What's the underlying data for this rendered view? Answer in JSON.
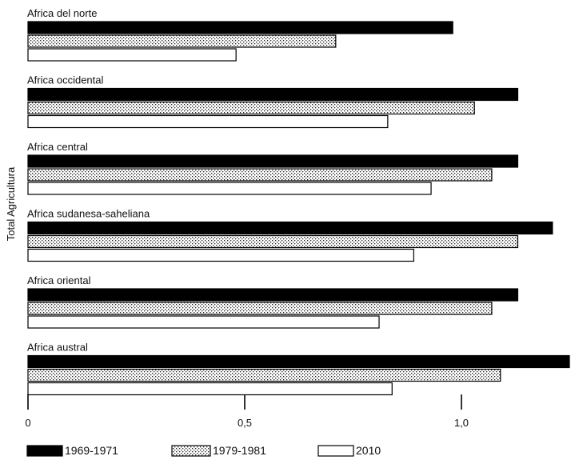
{
  "chart_data": {
    "type": "bar",
    "orientation": "horizontal",
    "ylabel": "Total Agricultura",
    "xlabel": "",
    "xlim": [
      0,
      1.25
    ],
    "x_ticks": [
      0,
      0.5,
      1.0
    ],
    "x_tick_labels": [
      "0",
      "0,5",
      "1,0"
    ],
    "grid": false,
    "legend_position": "bottom",
    "categories": [
      "Africa del norte",
      "Africa occidental",
      "Africa central",
      "Africa sudanesa-saheliana",
      "Africa oriental",
      "Africa austral"
    ],
    "series": [
      {
        "name": "1969-1971",
        "style": "solid",
        "color": "#000000",
        "values": [
          0.98,
          1.13,
          1.13,
          1.21,
          1.13,
          1.26
        ]
      },
      {
        "name": "1979-1981",
        "style": "dotted",
        "color": "#9a9a9a",
        "values": [
          0.71,
          1.03,
          1.07,
          1.13,
          1.07,
          1.09
        ]
      },
      {
        "name": "2010",
        "style": "outline",
        "color": "#ffffff",
        "values": [
          0.48,
          0.83,
          0.93,
          0.89,
          0.81,
          0.84
        ]
      }
    ]
  }
}
